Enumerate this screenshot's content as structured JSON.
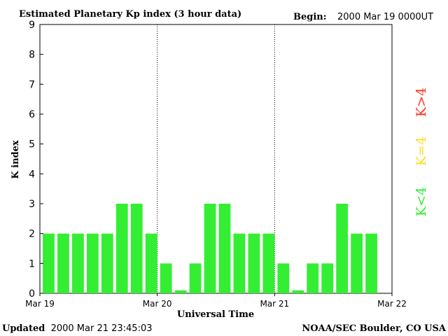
{
  "chart_data": {
    "type": "bar",
    "title": "Estimated Planetary Kp index (3 hour data)",
    "begin_label": "Begin:",
    "begin_value": "2000 Mar 19 0000UT",
    "xlabel": "Universal Time",
    "ylabel": "K index",
    "ylim": [
      0,
      9
    ],
    "y_ticks": [
      "0",
      "1",
      "2",
      "3",
      "4",
      "5",
      "6",
      "7",
      "8",
      "9"
    ],
    "x_ticks": [
      "Mar 19",
      "Mar 20",
      "Mar 21",
      "Mar 22"
    ],
    "bins_per_day": 8,
    "values": [
      2,
      2,
      2,
      2,
      2,
      3,
      3,
      2,
      1,
      0.1,
      1,
      3,
      3,
      2,
      2,
      2,
      1,
      0.1,
      1,
      1,
      3,
      2,
      2
    ],
    "legend": [
      {
        "label": "K<4",
        "color": "#33ee33"
      },
      {
        "label": "K=4",
        "color": "#ffdd22"
      },
      {
        "label": "K>4",
        "color": "#ff3322"
      }
    ],
    "bar_color": "#33ee33"
  },
  "footer": {
    "updated_label": "Updated",
    "updated_value": "2000 Mar 21 23:45:03",
    "source": "NOAA/SEC Boulder, CO USA"
  }
}
